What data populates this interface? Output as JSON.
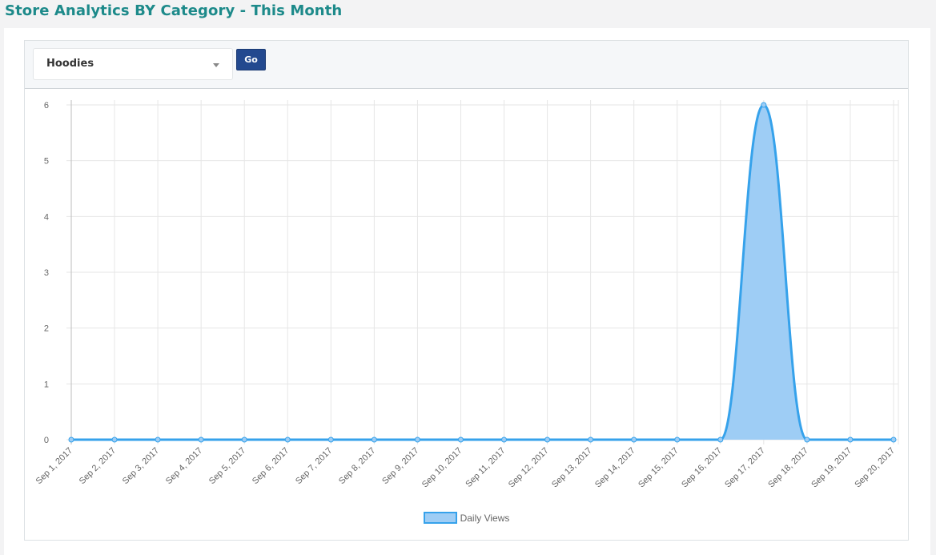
{
  "page": {
    "title": "Store Analytics BY Category - This Month"
  },
  "filter": {
    "category_selected": "Hoodies",
    "go_label": "Go"
  },
  "colors": {
    "title": "#1d8a8a",
    "series_line": "#36a2eb",
    "series_fill": "#9ecdf5",
    "go_button": "#23498f"
  },
  "chart_data": {
    "type": "area",
    "categories": [
      "Sep 1, 2017",
      "Sep 2, 2017",
      "Sep 3, 2017",
      "Sep 4, 2017",
      "Sep 5, 2017",
      "Sep 6, 2017",
      "Sep 7, 2017",
      "Sep 8, 2017",
      "Sep 9, 2017",
      "Sep 10, 2017",
      "Sep 11, 2017",
      "Sep 12, 2017",
      "Sep 13, 2017",
      "Sep 14, 2017",
      "Sep 15, 2017",
      "Sep 16, 2017",
      "Sep 17, 2017",
      "Sep 18, 2017",
      "Sep 19, 2017",
      "Sep 20, 2017"
    ],
    "series": [
      {
        "name": "Daily Views",
        "values": [
          0,
          0,
          0,
          0,
          0,
          0,
          0,
          0,
          0,
          0,
          0,
          0,
          0,
          0,
          0,
          0,
          6,
          0,
          0,
          0
        ]
      }
    ],
    "ylim": [
      0,
      6
    ],
    "yticks": [
      "0",
      "1",
      "2",
      "3",
      "4",
      "5",
      "6"
    ],
    "grid": true,
    "legend_position": "bottom"
  }
}
